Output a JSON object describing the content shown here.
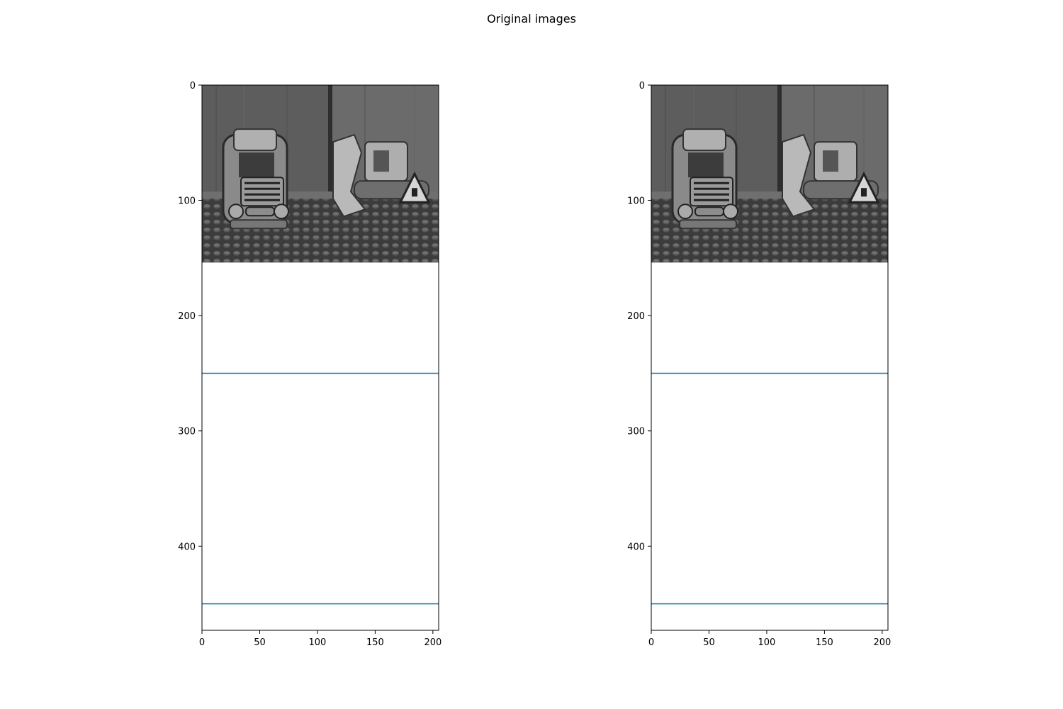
{
  "figure": {
    "title": "Original images"
  },
  "chart_data": [
    {
      "type": "image",
      "image_description": "grayscale",
      "image_extent": {
        "x": [
          0,
          205
        ],
        "y": [
          0,
          154
        ]
      },
      "xlim": [
        0,
        205
      ],
      "ylim": [
        473,
        0
      ],
      "x_ticks": [
        0,
        50,
        100,
        150,
        200
      ],
      "y_ticks": [
        0,
        100,
        200,
        300,
        400
      ],
      "hlines": [
        {
          "y": 250,
          "color": "#1f77b4"
        },
        {
          "y": 450,
          "color": "#1f77b4"
        }
      ],
      "grid": false
    },
    {
      "type": "image",
      "image_description": "grayscale",
      "image_extent": {
        "x": [
          0,
          205
        ],
        "y": [
          0,
          154
        ]
      },
      "xlim": [
        0,
        205
      ],
      "ylim": [
        473,
        0
      ],
      "x_ticks": [
        0,
        50,
        100,
        150,
        200
      ],
      "y_ticks": [
        0,
        100,
        200,
        300,
        400
      ],
      "hlines": [
        {
          "y": 250,
          "color": "#1f77b4"
        },
        {
          "y": 450,
          "color": "#1f77b4"
        }
      ],
      "grid": false
    }
  ]
}
